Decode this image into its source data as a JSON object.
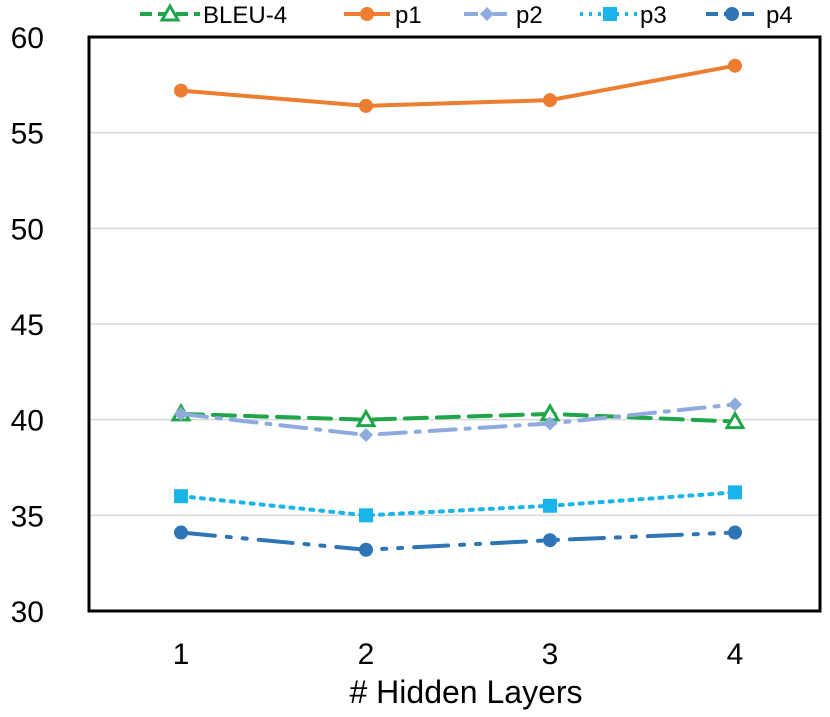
{
  "chart_data": {
    "type": "line",
    "title": "",
    "xlabel": "# Hidden Layers",
    "ylabel": "",
    "categories": [
      "1",
      "2",
      "3",
      "4"
    ],
    "ylim": [
      30,
      60
    ],
    "yticks": [
      "30",
      "35",
      "40",
      "45",
      "50",
      "55",
      "60"
    ],
    "grid": "horizontal",
    "legend": "top",
    "series": [
      {
        "name": "BLEU-4",
        "values": [
          40.3,
          40.0,
          40.3,
          39.9
        ],
        "color": "#1fa64a",
        "dash": "dashed",
        "marker": "triangle"
      },
      {
        "name": "p1",
        "values": [
          57.2,
          56.4,
          56.7,
          58.5
        ],
        "color": "#ed7d31",
        "dash": "solid",
        "marker": "circle"
      },
      {
        "name": "p2",
        "values": [
          40.3,
          39.2,
          39.8,
          40.8
        ],
        "color": "#8faadc",
        "dash": "dashdot",
        "marker": "diamond"
      },
      {
        "name": "p3",
        "values": [
          36.0,
          35.0,
          35.5,
          36.2
        ],
        "color": "#19b4ea",
        "dash": "dotted",
        "marker": "square"
      },
      {
        "name": "p4",
        "values": [
          34.1,
          33.2,
          33.7,
          34.1
        ],
        "color": "#2e75b6",
        "dash": "longdashdot",
        "marker": "circle"
      }
    ]
  }
}
